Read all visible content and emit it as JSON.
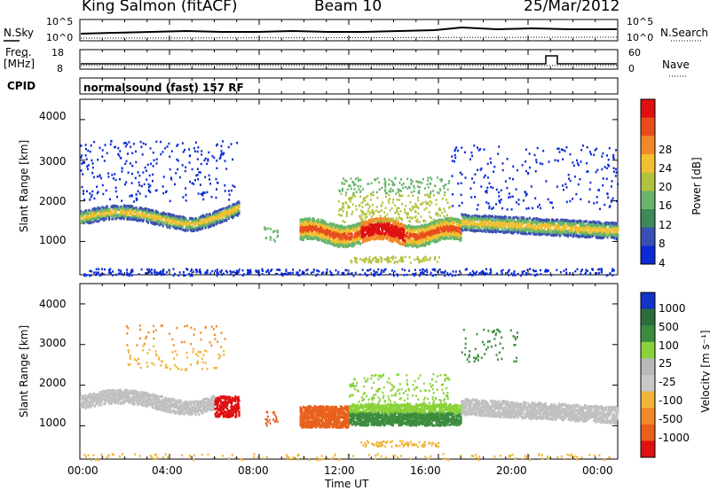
{
  "header": {
    "station": "King Salmon (fitACF)",
    "beam": "Beam 10",
    "date": "25/Mar/2012"
  },
  "top_panels": {
    "nsky_label": "N.Sky",
    "nsearch_label": "N.Search",
    "noise_ticks_left": [
      "10^5",
      "10^0"
    ],
    "noise_ticks_right": [
      "10^5",
      "10^0"
    ],
    "freq_label_1": "Freq.",
    "freq_label_2": "[MHz]",
    "freq_ticks": [
      "18",
      "8"
    ],
    "nave_label": "Nave",
    "nave_ticks": [
      "60",
      "0"
    ],
    "cpid_label": "CPID",
    "cpid_text": "normalsound (fast) 157 RF"
  },
  "power_panel": {
    "ylabel": "Slant Range [km]",
    "yticks": [
      "4000",
      "3000",
      "2000",
      "1000"
    ],
    "colorbar_label": "Power [dB]",
    "colorbar_ticks": [
      "28",
      "24",
      "20",
      "16",
      "12",
      "8",
      "4"
    ]
  },
  "velocity_panel": {
    "ylabel": "Slant Range [km]",
    "yticks": [
      "4000",
      "3000",
      "2000",
      "1000"
    ],
    "colorbar_label": "Velocity [m s⁻¹]",
    "colorbar_ticks": [
      "1000",
      "500",
      "100",
      "25",
      "-25",
      "-100",
      "-500",
      "-1000"
    ]
  },
  "xaxis": {
    "label": "Time UT",
    "ticks": [
      "00:00",
      "04:00",
      "08:00",
      "12:00",
      "16:00",
      "20:00",
      "00:00"
    ]
  },
  "colors": {
    "power_scale": [
      "#0a2bd6",
      "#3a4fb3",
      "#3c8a5a",
      "#68b46a",
      "#b3c23e",
      "#f0c030",
      "#f08a28",
      "#e84c1c",
      "#e01010"
    ],
    "velocity_scale": [
      "#1234c8",
      "#2a6d3a",
      "#3c8c3e",
      "#8ad23a",
      "#b8b8b8",
      "#c8c8c8",
      "#f0b43a",
      "#f08a28",
      "#e8601c",
      "#e01010"
    ],
    "ground_scatter": "#c0c0c0"
  },
  "chart_data": [
    {
      "type": "line",
      "title": "King Salmon (fitACF) Beam 10 25/Mar/2012",
      "description_series": [
        "N.Sky",
        "N.Search"
      ],
      "ylim": [
        1,
        100000
      ],
      "log_scale": true,
      "xlim": [
        "00:00",
        "24:00"
      ]
    },
    {
      "type": "line",
      "series": [
        {
          "name": "Freq. [MHz]",
          "values": [
            10.3,
            10.3,
            10.3,
            10.3,
            10.3,
            10.3,
            10.3
          ]
        },
        {
          "name": "Nave",
          "values": [
            20,
            20,
            20,
            20,
            20,
            22,
            20
          ]
        }
      ],
      "x": [
        "00:00",
        "04:00",
        "08:00",
        "12:00",
        "16:00",
        "20:00",
        "24:00"
      ],
      "ylim_freq": [
        8,
        18
      ],
      "ylim_nave": [
        0,
        60
      ]
    },
    {
      "type": "heatmap",
      "quantity": "Power [dB]",
      "xlabel": "Time UT",
      "ylabel": "Slant Range [km]",
      "ylim": [
        180,
        4500
      ],
      "xlim": [
        "00:00",
        "24:00"
      ],
      "color_range": [
        0,
        30
      ],
      "features": [
        {
          "time_start": "00:00",
          "time_end": "07:10",
          "range_center_km": 1700,
          "power_db": 16
        },
        {
          "time_start": "09:50",
          "time_end": "17:00",
          "range_center_km": 1250,
          "power_db": 24
        },
        {
          "time_start": "17:00",
          "time_end": "24:00",
          "range_center_km": 1450,
          "power_db": 14
        }
      ]
    },
    {
      "type": "heatmap",
      "quantity": "Velocity [m s⁻¹]",
      "xlabel": "Time UT",
      "ylabel": "Slant Range [km]",
      "ylim": [
        180,
        4500
      ],
      "xlim": [
        "00:00",
        "24:00"
      ],
      "color_range": [
        -1000,
        1000
      ],
      "features": [
        {
          "time_start": "00:00",
          "time_end": "06:00",
          "range_center_km": 1700,
          "velocity_ms": 0,
          "ground_scatter": true
        },
        {
          "time_start": "06:00",
          "time_end": "07:10",
          "range_center_km": 1500,
          "velocity_ms": -600
        },
        {
          "time_start": "09:50",
          "time_end": "12:00",
          "range_center_km": 1250,
          "velocity_ms": -300
        },
        {
          "time_start": "12:00",
          "time_end": "17:00",
          "range_center_km": 1300,
          "velocity_ms": 100
        },
        {
          "time_start": "17:00",
          "time_end": "24:00",
          "range_center_km": 1450,
          "velocity_ms": 0,
          "ground_scatter": true
        }
      ]
    }
  ]
}
